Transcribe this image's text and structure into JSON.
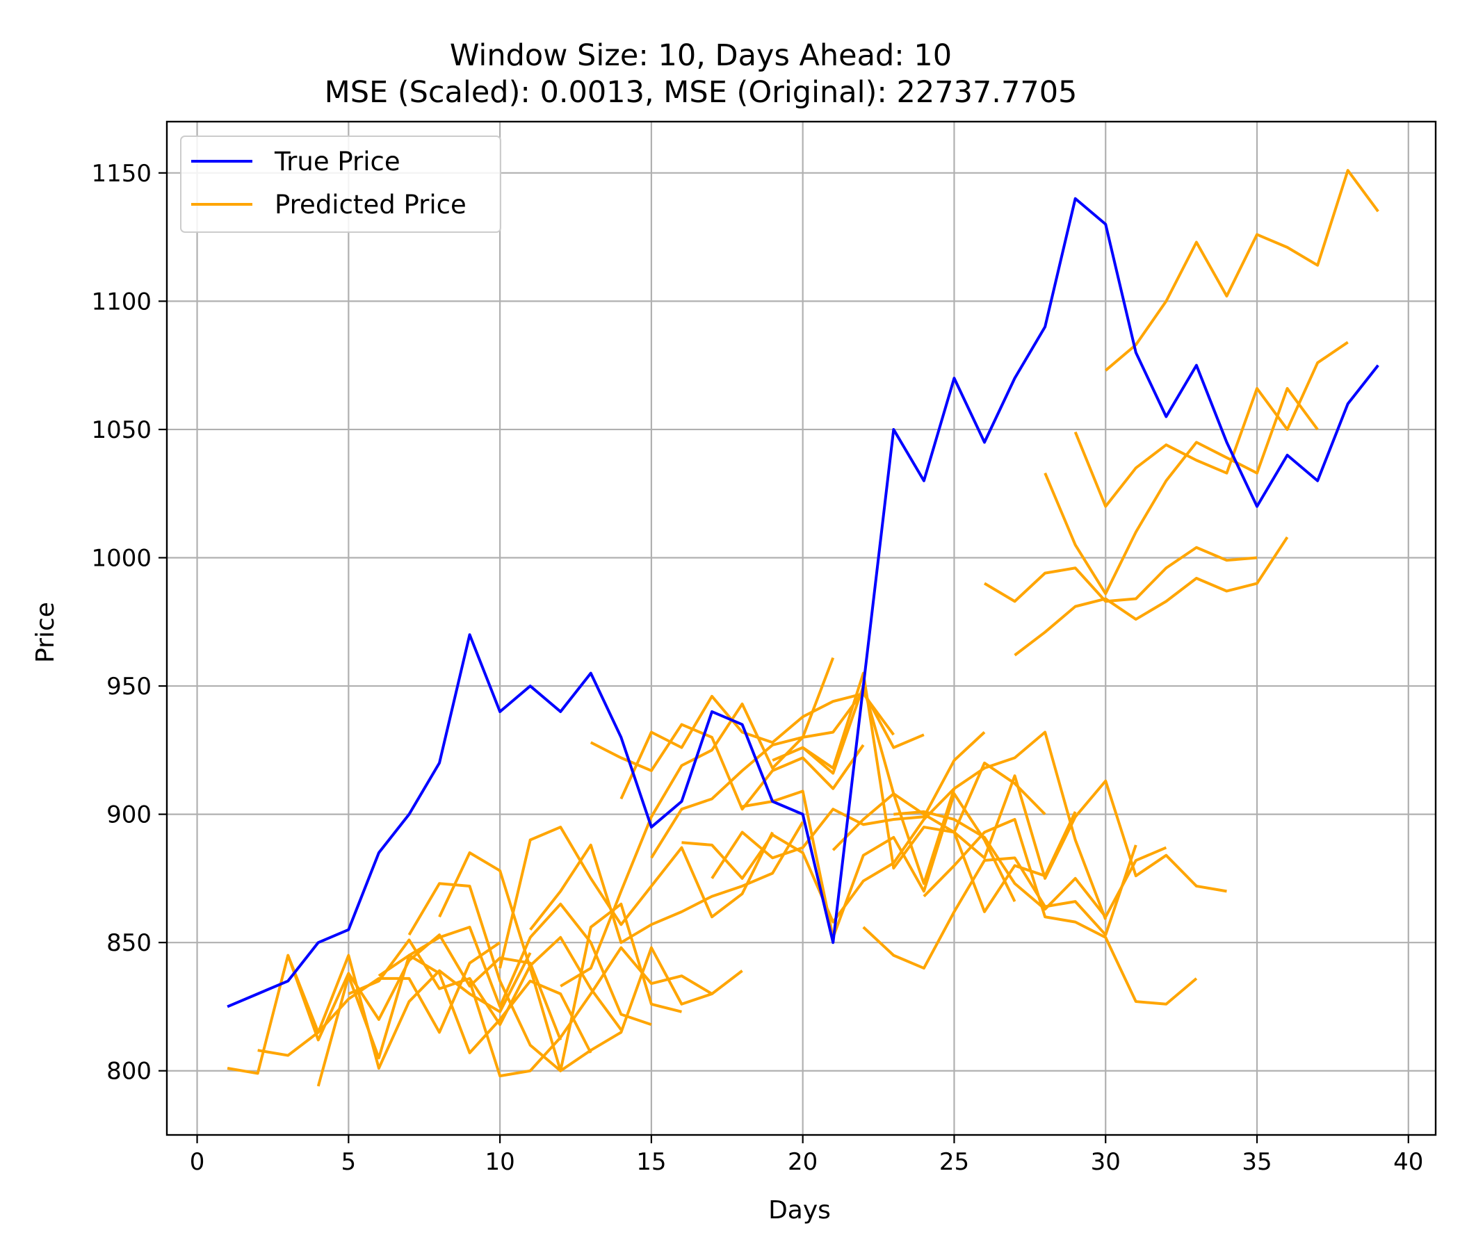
{
  "chart_data": {
    "type": "line",
    "title_lines": [
      "Window Size: 10, Days Ahead: 10",
      "MSE (Scaled): 0.0013, MSE (Original): 22737.7705"
    ],
    "xlabel": "Days",
    "ylabel": "Price",
    "xlim": [
      -1,
      40.9
    ],
    "ylim": [
      775,
      1170
    ],
    "xticks": [
      0,
      5,
      10,
      15,
      20,
      25,
      30,
      35,
      40
    ],
    "yticks": [
      800,
      850,
      900,
      950,
      1000,
      1050,
      1100,
      1150
    ],
    "grid": true,
    "legend": {
      "placement": "top-left",
      "entries": [
        "True Price",
        "Predicted Price"
      ]
    },
    "colors": {
      "true": "#0000ff",
      "predicted": "#ffa500"
    },
    "true_series": {
      "name": "True Price",
      "x": [
        1,
        2,
        3,
        4,
        5,
        6,
        7,
        8,
        9,
        10,
        11,
        12,
        13,
        14,
        15,
        16,
        17,
        18,
        19,
        20,
        21,
        22,
        23,
        24,
        25,
        26,
        27,
        28,
        29,
        30,
        31,
        32,
        33,
        34,
        35,
        36,
        37,
        38,
        39
      ],
      "y": [
        825,
        830,
        835,
        850,
        855,
        885,
        900,
        920,
        970,
        940,
        950,
        940,
        955,
        930,
        895,
        905,
        940,
        935,
        905,
        900,
        850,
        950,
        1050,
        1030,
        1070,
        1045,
        1070,
        1090,
        1140,
        1130,
        1080,
        1055,
        1075,
        1045,
        1020,
        1040,
        1030,
        1060,
        1075
      ]
    },
    "predicted_series": [
      {
        "start": 1,
        "values": [
          801,
          799,
          845,
          815,
          828,
          836,
          836,
          815,
          842,
          850
        ]
      },
      {
        "start": 2,
        "values": [
          808,
          806,
          815,
          845,
          801,
          827,
          839,
          830,
          823,
          846
        ]
      },
      {
        "start": 3,
        "values": [
          845,
          812,
          838,
          820,
          843,
          853,
          833,
          844,
          842,
          812
        ]
      },
      {
        "start": 4,
        "values": [
          794,
          837,
          805,
          845,
          838,
          807,
          820,
          835,
          830,
          807
        ]
      },
      {
        "start": 5,
        "values": [
          830,
          835,
          851,
          832,
          836,
          818,
          841,
          852,
          832,
          816
        ]
      },
      {
        "start": 6,
        "values": [
          837,
          845,
          852,
          856,
          825,
          852,
          865,
          850,
          822,
          818
        ]
      },
      {
        "start": 7,
        "values": [
          853,
          873,
          872,
          835,
          810,
          800,
          856,
          865,
          826,
          823
        ]
      },
      {
        "start": 8,
        "values": [
          860,
          885,
          878,
          840,
          800,
          808,
          815,
          848,
          826,
          830
        ]
      },
      {
        "start": 9,
        "values": [
          835,
          798,
          800,
          813,
          830,
          848,
          834,
          837,
          830,
          839
        ]
      },
      {
        "start": 10,
        "values": [
          840,
          890,
          895,
          875,
          857,
          872,
          887,
          860,
          869,
          893
        ]
      },
      {
        "start": 11,
        "values": [
          855,
          870,
          888,
          850,
          857,
          862,
          868,
          872,
          877,
          897
        ]
      },
      {
        "start": 12,
        "values": [
          833,
          840,
          870,
          899,
          919,
          925,
          943,
          918,
          930,
          961
        ]
      },
      {
        "start": 13,
        "values": [
          928,
          922,
          917,
          935,
          930,
          902,
          917,
          922,
          910,
          927
        ]
      },
      {
        "start": 14,
        "values": [
          906,
          932,
          926,
          946,
          932,
          928,
          938,
          944,
          947,
          931
        ]
      },
      {
        "start": 15,
        "values": [
          883,
          902,
          906,
          917,
          927,
          930,
          932,
          948,
          926,
          931
        ]
      },
      {
        "start": 16,
        "values": [
          889,
          888,
          875,
          892,
          885,
          858,
          874,
          881,
          898,
          910
        ]
      },
      {
        "start": 17,
        "values": [
          875,
          893,
          883,
          887,
          902,
          896,
          898,
          899,
          921,
          932
        ]
      },
      {
        "start": 18,
        "values": [
          903,
          905,
          909,
          852,
          884,
          891,
          870,
          908,
          890,
          866
        ]
      },
      {
        "start": 19,
        "values": [
          921,
          926,
          916,
          950,
          908,
          900,
          893,
          920,
          912,
          900
        ]
      },
      {
        "start": 20,
        "values": [
          926,
          918,
          955,
          879,
          895,
          893,
          862,
          880,
          876,
          901
        ]
      },
      {
        "start": 21,
        "values": [
          886,
          898,
          908,
          873,
          910,
          918,
          922,
          932,
          890,
          859
        ]
      },
      {
        "start": 22,
        "values": [
          856,
          845,
          840,
          862,
          882,
          883,
          864,
          866,
          853,
          888
        ]
      },
      {
        "start": 23,
        "values": [
          900,
          901,
          898,
          891,
          873,
          863,
          875,
          860,
          882,
          887
        ]
      },
      {
        "start": 24,
        "values": [
          868,
          880,
          893,
          898,
          860,
          858,
          852,
          827,
          826,
          836
        ]
      },
      {
        "start": 25,
        "values": [
          893,
          883,
          915,
          875,
          899,
          913,
          876,
          884,
          872,
          870
        ]
      },
      {
        "start": 26,
        "values": [
          990,
          983,
          994,
          996,
          983,
          984,
          996,
          1004,
          999,
          1000
        ]
      },
      {
        "start": 27,
        "values": [
          962,
          971,
          981,
          984,
          976,
          983,
          992,
          987,
          990,
          1008
        ]
      },
      {
        "start": 28,
        "values": [
          1033,
          1005,
          986,
          1010,
          1030,
          1045,
          1039,
          1033,
          1066,
          1050
        ]
      },
      {
        "start": 29,
        "values": [
          1049,
          1020,
          1035,
          1044,
          1038,
          1033,
          1066,
          1050,
          1076,
          1084
        ]
      },
      {
        "start": 30,
        "values": [
          1073,
          1083,
          1100,
          1123,
          1102,
          1126,
          1121,
          1114,
          1151,
          1135
        ]
      }
    ]
  }
}
